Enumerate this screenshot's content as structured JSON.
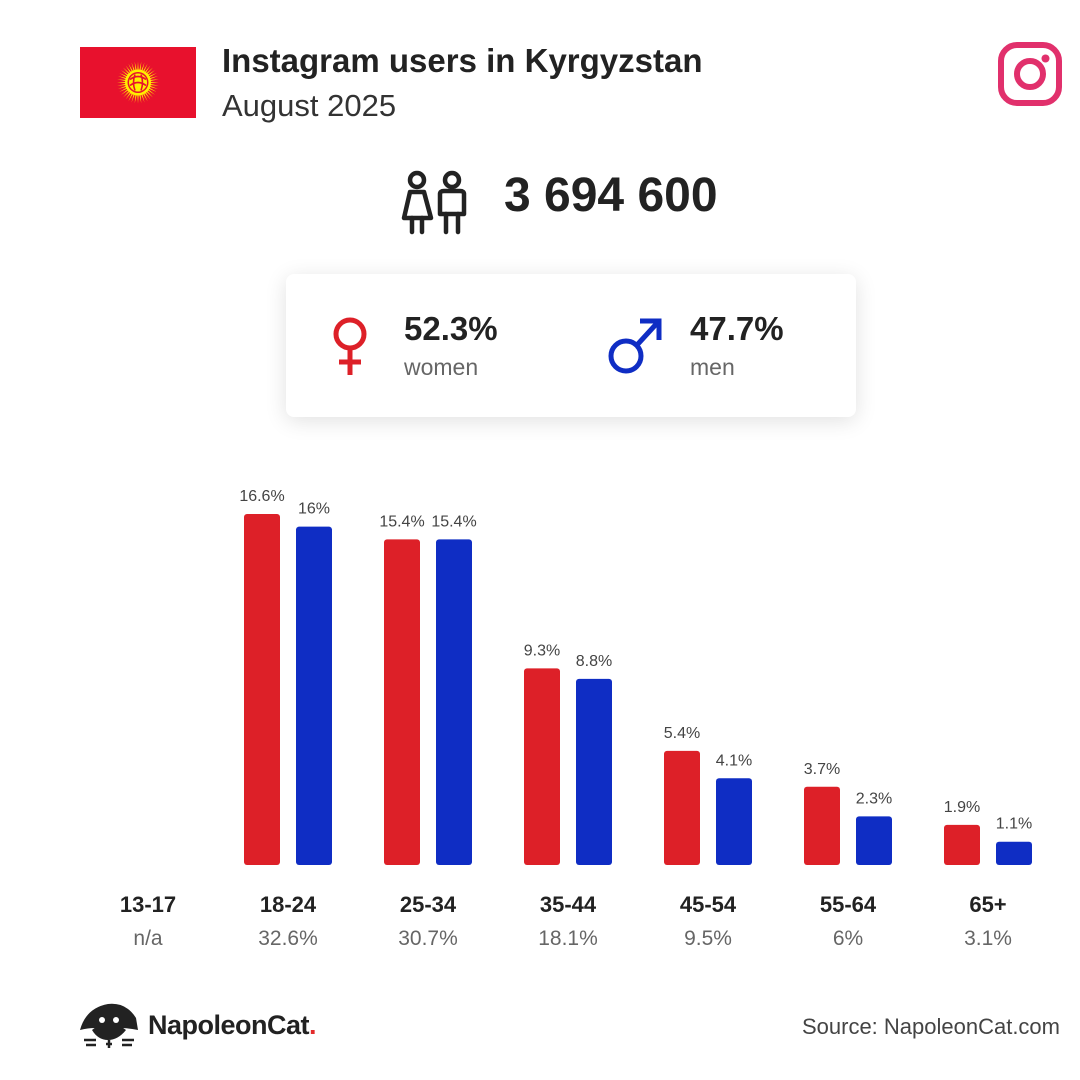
{
  "header": {
    "title": "Instagram users in Kyrgyzstan",
    "subtitle": "August 2025",
    "flag_icon": "kyrgyzstan-flag",
    "brand_icon": "instagram-icon"
  },
  "total_users": "3 694 600",
  "gender": {
    "women": {
      "percent": "52.3%",
      "label": "women",
      "color": "#dd2028"
    },
    "men": {
      "percent": "47.7%",
      "label": "men",
      "color": "#0f2dc4"
    }
  },
  "chart_data": {
    "type": "bar",
    "categories": [
      "13-17",
      "18-24",
      "25-34",
      "35-44",
      "45-54",
      "55-64",
      "65+"
    ],
    "category_totals": [
      "n/a",
      "32.6%",
      "30.7%",
      "18.1%",
      "9.5%",
      "6%",
      "3.1%"
    ],
    "series": [
      {
        "color": "#dd2028",
        "values": [
          null,
          16.6,
          15.4,
          9.3,
          5.4,
          3.7,
          1.9
        ],
        "labels": [
          "",
          "16.6%",
          "15.4%",
          "9.3%",
          "5.4%",
          "3.7%",
          "1.9%"
        ]
      },
      {
        "color": "#0f2dc4",
        "values": [
          null,
          16,
          15.4,
          8.8,
          4.1,
          2.3,
          1.1
        ],
        "labels": [
          "",
          "16%",
          "15.4%",
          "8.8%",
          "4.1%",
          "2.3%",
          "1.1%"
        ]
      }
    ],
    "ylim": [
      0,
      16.6
    ],
    "grid": false,
    "legend": "none"
  },
  "footer": {
    "brand": "NapoleonCat",
    "brand_dot": ".",
    "source": "Source: NapoleonCat.com"
  }
}
